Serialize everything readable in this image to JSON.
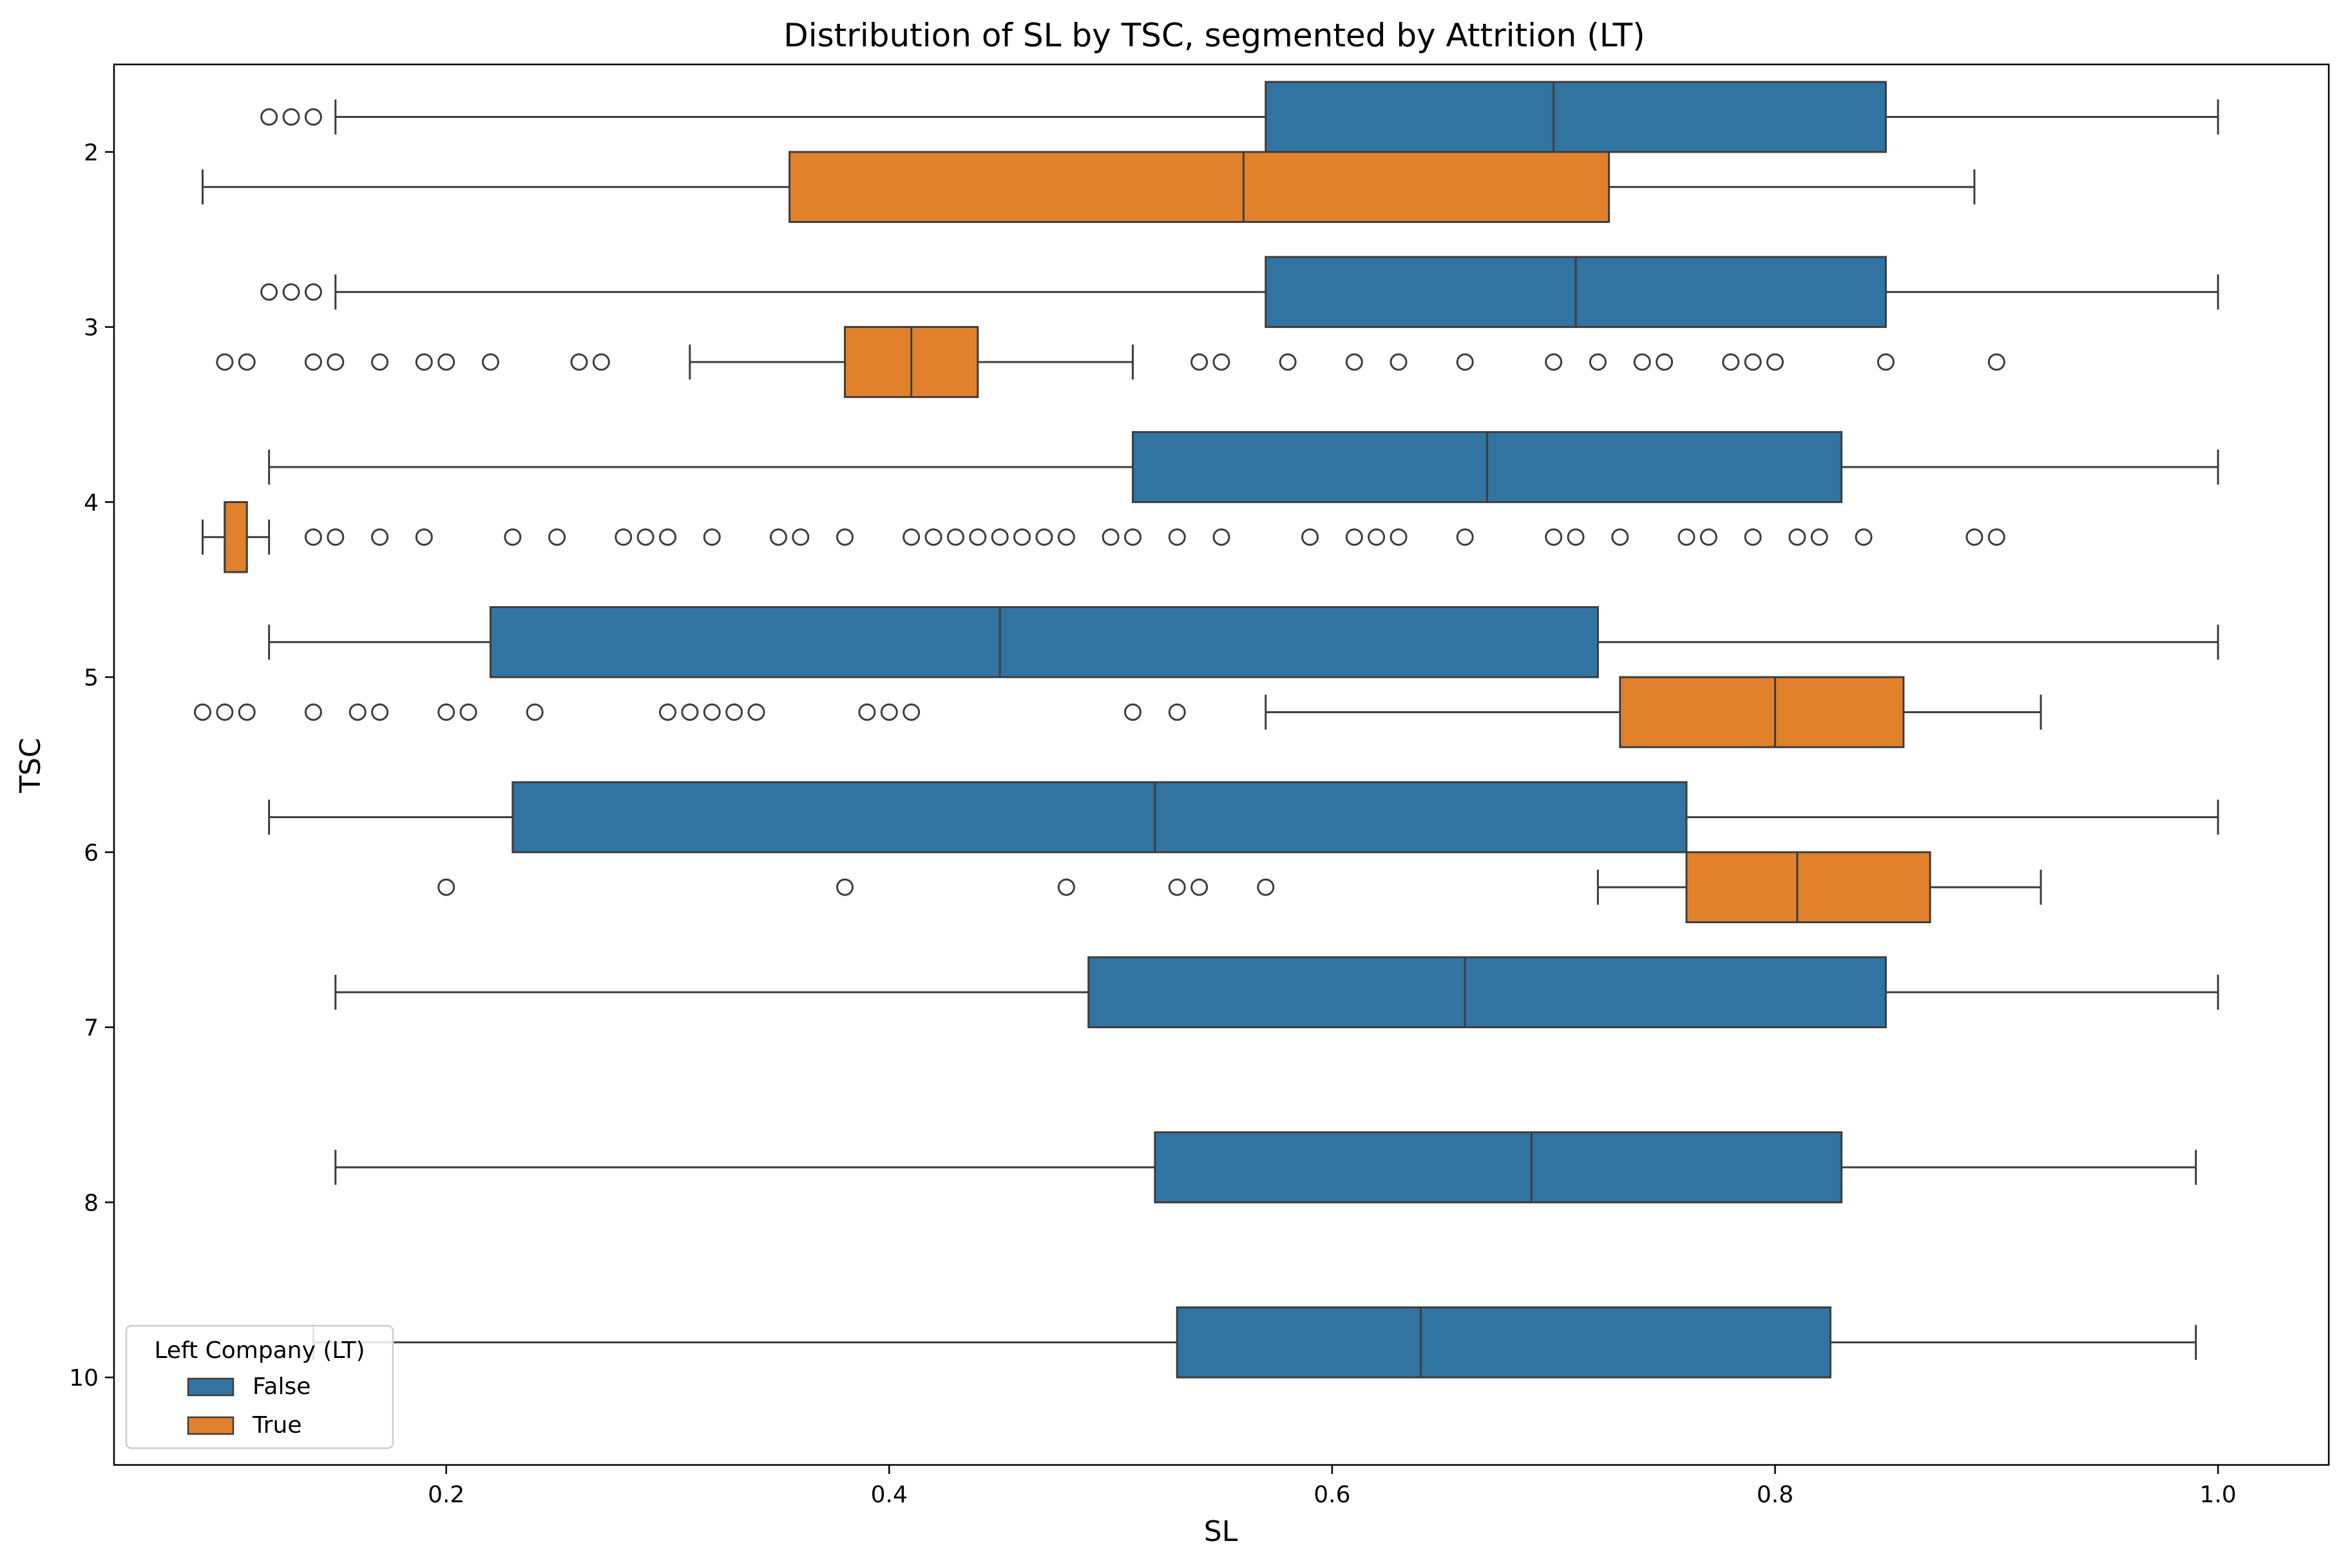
{
  "chart_data": {
    "type": "boxplot-horizontal",
    "title": "Distribution of SL by TSC, segmented by Attrition (LT)",
    "xlabel": "SL",
    "ylabel": "TSC",
    "xlim": [
      0.05,
      1.05
    ],
    "xticks": [
      "0.2",
      "0.4",
      "0.6",
      "0.8",
      "1.0"
    ],
    "categories": [
      "2",
      "3",
      "4",
      "5",
      "6",
      "7",
      "8",
      "10"
    ],
    "legend": {
      "title": "Left Company (LT)",
      "placement": "lower-left",
      "entries": [
        {
          "label": "False",
          "color": "#3274a1"
        },
        {
          "label": "True",
          "color": "#e1812c"
        }
      ]
    },
    "series": [
      {
        "name": "False",
        "color": "#3274a1",
        "boxes": [
          {
            "category": "2",
            "whislo": 0.15,
            "q1": 0.57,
            "med": 0.7,
            "q3": 0.85,
            "whishi": 1.0,
            "fliers": [
              0.12,
              0.13,
              0.14
            ]
          },
          {
            "category": "3",
            "whislo": 0.15,
            "q1": 0.57,
            "med": 0.71,
            "q3": 0.85,
            "whishi": 1.0,
            "fliers": [
              0.12,
              0.13,
              0.14
            ]
          },
          {
            "category": "4",
            "whislo": 0.12,
            "q1": 0.51,
            "med": 0.67,
            "q3": 0.83,
            "whishi": 1.0,
            "fliers": []
          },
          {
            "category": "5",
            "whislo": 0.12,
            "q1": 0.22,
            "med": 0.45,
            "q3": 0.72,
            "whishi": 1.0,
            "fliers": []
          },
          {
            "category": "6",
            "whislo": 0.12,
            "q1": 0.23,
            "med": 0.52,
            "q3": 0.76,
            "whishi": 1.0,
            "fliers": []
          },
          {
            "category": "7",
            "whislo": 0.15,
            "q1": 0.49,
            "med": 0.66,
            "q3": 0.85,
            "whishi": 1.0,
            "fliers": []
          },
          {
            "category": "8",
            "whislo": 0.15,
            "q1": 0.52,
            "med": 0.69,
            "q3": 0.83,
            "whishi": 0.99,
            "fliers": []
          },
          {
            "category": "10",
            "whislo": 0.14,
            "q1": 0.53,
            "med": 0.64,
            "q3": 0.825,
            "whishi": 0.99,
            "fliers": []
          }
        ]
      },
      {
        "name": "True",
        "color": "#e1812c",
        "boxes": [
          {
            "category": "2",
            "whislo": 0.09,
            "q1": 0.355,
            "med": 0.56,
            "q3": 0.725,
            "whishi": 0.89,
            "fliers": []
          },
          {
            "category": "3",
            "whislo": 0.31,
            "q1": 0.38,
            "med": 0.41,
            "q3": 0.44,
            "whishi": 0.51,
            "fliers": [
              0.1,
              0.11,
              0.14,
              0.15,
              0.17,
              0.19,
              0.2,
              0.22,
              0.26,
              0.27,
              0.54,
              0.55,
              0.58,
              0.61,
              0.63,
              0.66,
              0.7,
              0.72,
              0.74,
              0.75,
              0.78,
              0.79,
              0.8,
              0.85,
              0.9
            ]
          },
          {
            "category": "4",
            "whislo": 0.09,
            "q1": 0.1,
            "med": 0.1,
            "q3": 0.11,
            "whishi": 0.12,
            "fliers": [
              0.14,
              0.15,
              0.17,
              0.19,
              0.23,
              0.25,
              0.28,
              0.29,
              0.3,
              0.32,
              0.35,
              0.36,
              0.38,
              0.41,
              0.42,
              0.43,
              0.44,
              0.45,
              0.46,
              0.47,
              0.48,
              0.5,
              0.51,
              0.53,
              0.55,
              0.59,
              0.61,
              0.62,
              0.63,
              0.66,
              0.7,
              0.71,
              0.73,
              0.76,
              0.77,
              0.79,
              0.81,
              0.82,
              0.84,
              0.89,
              0.9
            ]
          },
          {
            "category": "5",
            "whislo": 0.57,
            "q1": 0.73,
            "med": 0.8,
            "q3": 0.858,
            "whishi": 0.92,
            "fliers": [
              0.09,
              0.1,
              0.11,
              0.14,
              0.16,
              0.17,
              0.2,
              0.21,
              0.24,
              0.3,
              0.31,
              0.32,
              0.33,
              0.34,
              0.39,
              0.4,
              0.41,
              0.51,
              0.53
            ]
          },
          {
            "category": "6",
            "whislo": 0.72,
            "q1": 0.76,
            "med": 0.81,
            "q3": 0.87,
            "whishi": 0.92,
            "fliers": [
              0.2,
              0.38,
              0.48,
              0.53,
              0.54,
              0.57
            ]
          }
        ]
      }
    ]
  }
}
